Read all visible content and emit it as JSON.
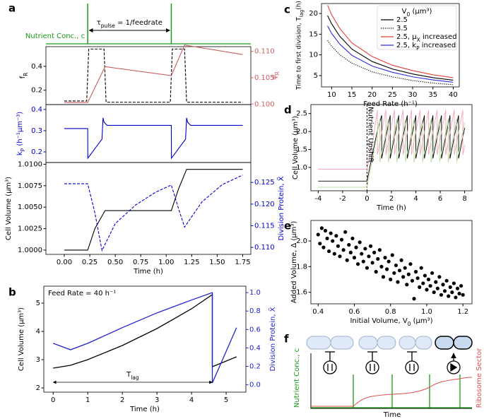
{
  "chart_data": [
    {
      "type": "pulse",
      "label": "a",
      "ylabel": "Nutrient Conc., c",
      "annotation": "τ_pulse = 1/feedrate",
      "color": "#1a9a1a",
      "x": [
        0.23,
        1.05
      ],
      "xlim": [
        -0.18,
        1.83
      ]
    },
    {
      "type": "line",
      "ylabel": "f_R",
      "y2label": "φ_R",
      "xlim": [
        -0.18,
        1.83
      ],
      "ylim": [
        0.08,
        0.565
      ],
      "yticks": [
        0.2,
        0.4
      ],
      "y2lim": [
        0.0999,
        0.1109
      ],
      "y2ticks": [
        {
          "value": 0.1,
          "label": "0.100"
        },
        0.105,
        {
          "value": 0.11,
          "label": "0.110"
        }
      ],
      "series": [
        {
          "color": "#000000",
          "linestyle": "dashed",
          "x": [
            0,
            0.22,
            0.24,
            0.39,
            0.41,
            1.04,
            1.06,
            1.18,
            1.2,
            1.75
          ],
          "values": [
            0.11,
            0.11,
            0.545,
            0.545,
            0.1,
            0.1,
            0.545,
            0.545,
            0.1,
            0.1
          ]
        },
        {
          "color": "#cd5c5c",
          "axis": "y2",
          "x": [
            0,
            0.23,
            0.4,
            1.05,
            1.18,
            1.75
          ],
          "values": [
            0.1003,
            0.1003,
            0.1071,
            0.1054,
            0.1112,
            0.1094
          ]
        }
      ]
    },
    {
      "type": "line",
      "ylabel": "k_P (h⁻¹μm⁻³)",
      "xlim": [
        -0.18,
        1.83
      ],
      "ylim": [
        0.15,
        0.423
      ],
      "yticks": [
        0.2,
        0.3,
        0.4
      ],
      "series": [
        {
          "color": "#0000cc",
          "x": [
            0,
            0.23,
            0.231,
            0.3,
            0.37,
            0.38,
            0.39,
            0.42,
            1.05,
            1.051,
            1.12,
            1.19,
            1.2,
            1.21,
            1.24,
            1.75
          ],
          "values": [
            0.31,
            0.31,
            0.17,
            0.215,
            0.26,
            0.36,
            0.34,
            0.325,
            0.325,
            0.17,
            0.215,
            0.26,
            0.36,
            0.34,
            0.325,
            0.325
          ]
        }
      ]
    },
    {
      "type": "line",
      "ylabel": "Cell Volume (μm³)",
      "y2label": "Division Protein, X̃",
      "xlabel": "Time (h)",
      "xlim": [
        -0.18,
        1.83
      ],
      "xticks": [
        {
          "value": 0,
          "label": "0.00"
        },
        0.25,
        {
          "value": 0.5,
          "label": "0.50"
        },
        0.75,
        {
          "value": 1,
          "label": "1.00"
        },
        1.25,
        {
          "value": 1.5,
          "label": "1.50"
        },
        1.75
      ],
      "ylim": [
        0.9995,
        1.0102
      ],
      "yticks": [
        {
          "value": 1,
          "label": "1.0000"
        },
        1.0025,
        {
          "value": 1.005,
          "label": "1.0050"
        },
        1.0075,
        {
          "value": 1.01,
          "label": "1.0100"
        }
      ],
      "y2lim": [
        0.1084,
        0.1296
      ],
      "y2ticks": [
        {
          "value": 0.11,
          "label": "0.110"
        },
        0.115,
        {
          "value": 0.12,
          "label": "0.120"
        },
        0.125
      ],
      "series": [
        {
          "color": "#000000",
          "x": [
            0,
            0.23,
            0.3,
            0.4,
            1.05,
            1.12,
            1.2,
            1.75
          ],
          "values": [
            1.0,
            1.0,
            1.0025,
            1.0046,
            1.0046,
            1.0071,
            1.0094,
            1.0094
          ]
        },
        {
          "color": "#0000cc",
          "axis": "y2",
          "linestyle": "dashed",
          "x": [
            0,
            0.23,
            0.3,
            0.37,
            0.5,
            0.7,
            0.9,
            1.05,
            1.12,
            1.18,
            1.35,
            1.55,
            1.75
          ],
          "values": [
            0.1247,
            0.1247,
            0.118,
            0.1093,
            0.1155,
            0.1198,
            0.1228,
            0.1244,
            0.119,
            0.1147,
            0.1205,
            0.1245,
            0.1267
          ]
        }
      ]
    },
    {
      "type": "line",
      "label": "b",
      "annotation": "Feed Rate = 40 h⁻¹",
      "span_label": "T_lag",
      "span": [
        0,
        4.6
      ],
      "ylabel": "Cell Volume (μm³)",
      "y2label": "Division Protein, X̃",
      "xlabel": "Time (h)",
      "xlim": [
        -0.27,
        5.57
      ],
      "xticks": [
        0,
        1,
        2,
        3,
        4,
        5
      ],
      "ylim": [
        1.85,
        5.6
      ],
      "yticks": [
        2,
        3,
        4,
        5
      ],
      "y2lim": [
        -0.08,
        1.07
      ],
      "y2ticks": [
        {
          "value": 0,
          "label": "0.0"
        },
        0.2,
        0.4,
        0.6,
        0.8,
        {
          "value": 1,
          "label": "1.0"
        }
      ],
      "series": [
        {
          "color": "#000000",
          "x": [
            0,
            0.5,
            1,
            2,
            3,
            4,
            4.6,
            4.6,
            5.3
          ],
          "values": [
            2.7,
            2.8,
            3.0,
            3.5,
            4.1,
            4.8,
            5.3,
            2.75,
            3.1
          ]
        },
        {
          "color": "#2222cc",
          "axis": "y2",
          "x": [
            0,
            0.5,
            1,
            2,
            3,
            4,
            4.6,
            4.6,
            5.3
          ],
          "values": [
            0.45,
            0.38,
            0.45,
            0.62,
            0.78,
            0.92,
            1.0,
            0.02,
            0.62
          ]
        }
      ]
    },
    {
      "type": "line",
      "label": "c",
      "ylabel": "Time to first division, T_lag(h)",
      "xlabel": "Feed Rate (h⁻¹)",
      "xlim": [
        7.5,
        41.5
      ],
      "xticks": [
        10,
        15,
        20,
        25,
        30,
        35,
        40
      ],
      "ylim": [
        2.27,
        22.4
      ],
      "yticks": [
        5,
        10,
        15,
        20
      ],
      "legend_title": "V_0 (μm³)",
      "legend": "upper right",
      "x": [
        9,
        10,
        12,
        15,
        20,
        25,
        30,
        35,
        40
      ],
      "series": [
        {
          "name": "2.5",
          "color": "#000000",
          "values": [
            19.5,
            17.5,
            14.5,
            11.4,
            8.4,
            6.6,
            5.4,
            4.5,
            3.9
          ]
        },
        {
          "name": "3.5",
          "color": "#000000",
          "linestyle": "dotted",
          "values": [
            13.5,
            12.1,
            10.05,
            8.0,
            5.9,
            4.7,
            3.8,
            3.2,
            2.8
          ]
        },
        {
          "name": "2.5, μ_X increased",
          "color": "#e8413a",
          "values": [
            22.0,
            19.7,
            16.4,
            12.9,
            9.6,
            7.5,
            6.2,
            5.2,
            4.5
          ]
        },
        {
          "name": "2.5, k_P increased",
          "color": "#2a2ae0",
          "values": [
            17.0,
            15.2,
            12.6,
            9.9,
            7.3,
            5.8,
            4.7,
            3.96,
            3.4
          ]
        }
      ]
    },
    {
      "type": "line",
      "label": "d",
      "annotation": "Nutrient Upshift",
      "vline": 0,
      "ylabel": "Cell Volume (μm³)",
      "xlabel": "Time (h)",
      "xlim": [
        -4.6,
        8.6
      ],
      "xticks": [
        -4,
        -2,
        0,
        2,
        4,
        6,
        8
      ],
      "ylim": [
        0.35,
        2.75
      ],
      "yticks": [
        {
          "value": 1,
          "label": "1.0"
        },
        1.5,
        {
          "value": 2,
          "label": "2.0"
        },
        2.5
      ],
      "series": [
        {
          "color": "#000000",
          "x": [
            -4,
            0,
            0.4,
            0.8,
            1.2,
            1.2,
            1.9,
            1.9,
            2.6,
            2.6,
            3.3,
            3.3,
            4.0,
            4.0,
            4.7,
            4.7,
            5.4,
            5.4,
            6.1,
            6.1,
            6.8,
            6.8,
            7.5,
            7.5,
            8.0
          ],
          "values": [
            0.62,
            0.62,
            1.3,
            1.95,
            2.45,
            1.25,
            2.45,
            1.25,
            2.45,
            1.25,
            2.45,
            1.25,
            2.45,
            1.25,
            2.45,
            1.25,
            2.45,
            1.25,
            2.45,
            1.25,
            2.45,
            1.25,
            2.45,
            1.25,
            2.1
          ]
        },
        {
          "color": "#f4a6b6",
          "x": [
            -4,
            0,
            0.5,
            0.85,
            0.85,
            1.55,
            1.55,
            2.25,
            2.25,
            2.95,
            2.95,
            3.65,
            3.65,
            4.35,
            4.35,
            5.05,
            5.05,
            5.75,
            5.75,
            6.45,
            6.45,
            7.15,
            7.15,
            7.85,
            7.85,
            8.0
          ],
          "values": [
            0.95,
            0.95,
            1.8,
            2.6,
            1.35,
            2.6,
            1.35,
            2.6,
            1.35,
            2.6,
            1.35,
            2.6,
            1.35,
            2.6,
            1.35,
            2.6,
            1.35,
            2.6,
            1.35,
            2.6,
            1.35,
            2.6,
            1.35,
            2.6,
            1.35,
            1.62
          ]
        },
        {
          "color": "#b5d99c",
          "x": [
            -4,
            0,
            0.6,
            1.05,
            1.05,
            1.75,
            1.75,
            2.45,
            2.45,
            3.15,
            3.15,
            3.85,
            3.85,
            4.55,
            4.55,
            5.25,
            5.25,
            5.95,
            5.95,
            6.65,
            6.65,
            7.35,
            7.35,
            8.0
          ],
          "values": [
            0.45,
            0.45,
            1.5,
            2.35,
            1.15,
            2.35,
            1.15,
            2.35,
            1.15,
            2.35,
            1.15,
            2.35,
            1.15,
            2.35,
            1.15,
            2.35,
            1.15,
            2.35,
            1.15,
            2.35,
            1.15,
            2.35,
            1.15,
            2.26
          ]
        }
      ]
    },
    {
      "type": "scatter",
      "label": "e",
      "ylabel": "Added Volume, Δ (μm³)",
      "xlabel": "Initial Volume, V_0 (μm³)",
      "color": "#000000",
      "xlim": [
        0.36,
        1.25
      ],
      "xticks": [
        0.4,
        0.6,
        0.8,
        {
          "value": 1,
          "label": "1.0"
        },
        1.2
      ],
      "ylim": [
        1.51,
        2.16
      ],
      "yticks": [
        1.6,
        1.8,
        {
          "value": 2,
          "label": "2.0"
        }
      ],
      "x": [
        0.4,
        0.41,
        0.42,
        0.43,
        0.44,
        0.45,
        0.46,
        0.47,
        0.48,
        0.49,
        0.5,
        0.51,
        0.52,
        0.53,
        0.54,
        0.55,
        0.56,
        0.57,
        0.58,
        0.59,
        0.6,
        0.61,
        0.62,
        0.63,
        0.64,
        0.65,
        0.66,
        0.67,
        0.68,
        0.69,
        0.7,
        0.71,
        0.72,
        0.73,
        0.74,
        0.75,
        0.76,
        0.77,
        0.78,
        0.79,
        0.8,
        0.81,
        0.82,
        0.83,
        0.84,
        0.85,
        0.86,
        0.87,
        0.88,
        0.89,
        0.9,
        0.91,
        0.92,
        0.93,
        0.94,
        0.95,
        0.96,
        0.97,
        0.98,
        0.99,
        1.0,
        1.01,
        1.02,
        1.03,
        1.04,
        1.05,
        1.06,
        1.07,
        1.08,
        1.09,
        1.1,
        1.11,
        1.12,
        1.13,
        1.14,
        1.15,
        1.16,
        1.17,
        1.18,
        1.19,
        1.2
      ],
      "values": [
        2.05,
        1.98,
        2.1,
        1.95,
        2.08,
        2.02,
        1.92,
        2.06,
        2.0,
        1.9,
        2.04,
        1.96,
        1.88,
        2.01,
        1.93,
        2.07,
        1.85,
        1.97,
        1.91,
        2.02,
        1.87,
        1.95,
        1.82,
        1.99,
        1.9,
        1.84,
        1.94,
        1.79,
        1.88,
        1.96,
        1.83,
        1.91,
        1.76,
        1.86,
        1.93,
        1.8,
        1.72,
        1.87,
        1.78,
        1.84,
        1.7,
        1.89,
        1.75,
        1.81,
        1.68,
        1.77,
        1.85,
        1.72,
        1.79,
        1.66,
        1.74,
        1.82,
        1.69,
        1.55,
        1.76,
        1.71,
        1.64,
        1.79,
        1.67,
        1.73,
        1.62,
        1.7,
        1.65,
        1.75,
        1.6,
        1.68,
        1.63,
        1.72,
        1.58,
        1.66,
        1.61,
        1.69,
        1.57,
        1.64,
        1.6,
        1.67,
        1.56,
        1.63,
        1.59,
        1.65,
        1.58
      ]
    }
  ],
  "diagram_f": {
    "label": "f",
    "ylabel": "Nutrient Conc., c",
    "y2label": "Ribosome Sector",
    "xlabel": "Time"
  }
}
